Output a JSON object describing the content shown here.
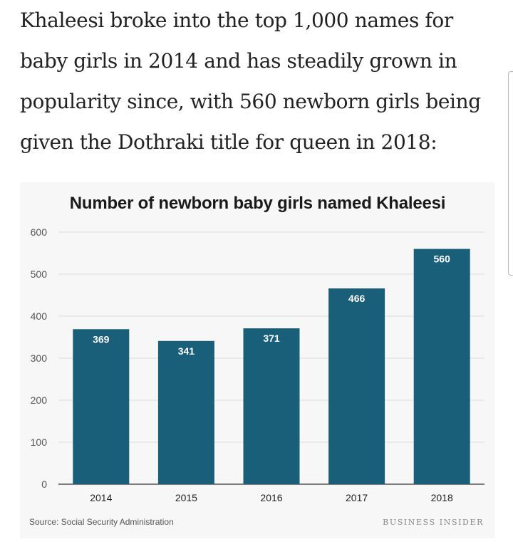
{
  "article": {
    "paragraph": "Khaleesi broke into the top 1,000 names for baby girls in 2014 and has steadily grown in popularity since, with 560 newborn girls being given the Dothraki title for queen in 2018:"
  },
  "chart_data": {
    "type": "bar",
    "title": "Number of newborn baby girls named Khaleesi",
    "categories": [
      "2014",
      "2015",
      "2016",
      "2017",
      "2018"
    ],
    "values": [
      369,
      341,
      371,
      466,
      560
    ],
    "xlabel": "",
    "ylabel": "",
    "ylim": [
      0,
      600
    ],
    "yticks": [
      0,
      100,
      200,
      300,
      400,
      500,
      600
    ],
    "grid": true,
    "bar_color": "#1a5f7a",
    "label_color": "#ffffff"
  },
  "footer": {
    "source_label": "Source:",
    "source_text": "Social Security Administration",
    "brand": "BUSINESS INSIDER"
  }
}
